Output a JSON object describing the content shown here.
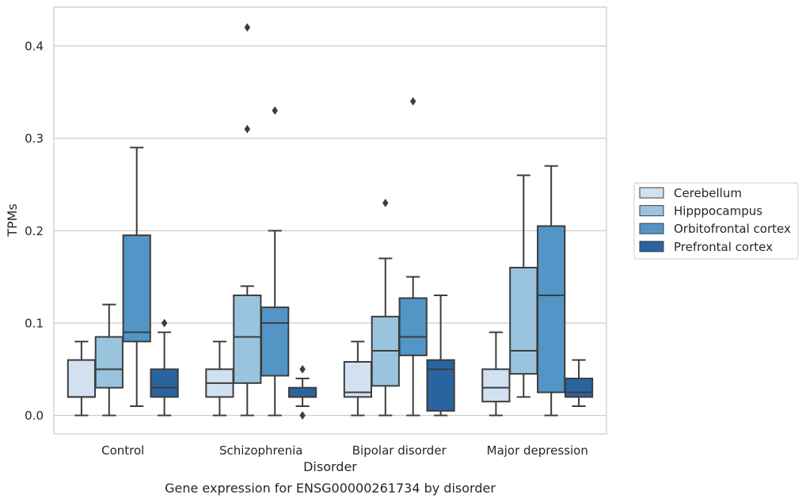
{
  "chart_data": {
    "type": "boxplot",
    "title": "",
    "caption": "Gene expression for ENSG00000261734 by disorder",
    "xlabel": "Disorder",
    "ylabel": "TPMs",
    "ylim": [
      -0.02,
      0.442
    ],
    "yticks": [
      0.0,
      0.1,
      0.2,
      0.3,
      0.4
    ],
    "ytick_labels": [
      "0.0",
      "0.1",
      "0.2",
      "0.3",
      "0.4"
    ],
    "grid": "horizontal",
    "legend_position": "right",
    "categories": [
      "Control",
      "Schizophrenia",
      "Bipolar disorder",
      "Major depression"
    ],
    "series": [
      {
        "name": "Cerebellum",
        "color": "#d1e1f0",
        "boxes": [
          {
            "whislo": 0.0,
            "q1": 0.02,
            "med": 0.02,
            "q3": 0.06,
            "whishi": 0.08,
            "fliers": []
          },
          {
            "whislo": 0.0,
            "q1": 0.02,
            "med": 0.035,
            "q3": 0.05,
            "whishi": 0.08,
            "fliers": []
          },
          {
            "whislo": 0.0,
            "q1": 0.02,
            "med": 0.025,
            "q3": 0.058,
            "whishi": 0.08,
            "fliers": []
          },
          {
            "whislo": 0.0,
            "q1": 0.015,
            "med": 0.03,
            "q3": 0.05,
            "whishi": 0.09,
            "fliers": []
          }
        ]
      },
      {
        "name": "Hipppocampus",
        "color": "#9ac4de",
        "boxes": [
          {
            "whislo": 0.0,
            "q1": 0.03,
            "med": 0.05,
            "q3": 0.085,
            "whishi": 0.12,
            "fliers": []
          },
          {
            "whislo": 0.0,
            "q1": 0.035,
            "med": 0.085,
            "q3": 0.13,
            "whishi": 0.14,
            "fliers": [
              0.31,
              0.42
            ]
          },
          {
            "whislo": 0.0,
            "q1": 0.032,
            "med": 0.07,
            "q3": 0.107,
            "whishi": 0.17,
            "fliers": [
              0.23
            ]
          },
          {
            "whislo": 0.02,
            "q1": 0.045,
            "med": 0.07,
            "q3": 0.16,
            "whishi": 0.26,
            "fliers": []
          }
        ]
      },
      {
        "name": "Orbitofrontal cortex",
        "color": "#5395c6",
        "boxes": [
          {
            "whislo": 0.01,
            "q1": 0.08,
            "med": 0.09,
            "q3": 0.195,
            "whishi": 0.29,
            "fliers": []
          },
          {
            "whislo": 0.0,
            "q1": 0.043,
            "med": 0.1,
            "q3": 0.117,
            "whishi": 0.2,
            "fliers": [
              0.33
            ]
          },
          {
            "whislo": 0.0,
            "q1": 0.065,
            "med": 0.085,
            "q3": 0.127,
            "whishi": 0.15,
            "fliers": [
              0.34
            ]
          },
          {
            "whislo": 0.0,
            "q1": 0.025,
            "med": 0.13,
            "q3": 0.205,
            "whishi": 0.27,
            "fliers": []
          }
        ]
      },
      {
        "name": "Prefrontal cortex",
        "color": "#2a64a0",
        "boxes": [
          {
            "whislo": 0.0,
            "q1": 0.02,
            "med": 0.03,
            "q3": 0.05,
            "whishi": 0.09,
            "fliers": [
              0.1
            ]
          },
          {
            "whislo": 0.01,
            "q1": 0.02,
            "med": 0.02,
            "q3": 0.03,
            "whishi": 0.04,
            "fliers": [
              0.0,
              0.05
            ]
          },
          {
            "whislo": 0.0,
            "q1": 0.005,
            "med": 0.05,
            "q3": 0.06,
            "whishi": 0.13,
            "fliers": []
          },
          {
            "whislo": 0.01,
            "q1": 0.02,
            "med": 0.025,
            "q3": 0.04,
            "whishi": 0.06,
            "fliers": []
          }
        ]
      }
    ]
  }
}
